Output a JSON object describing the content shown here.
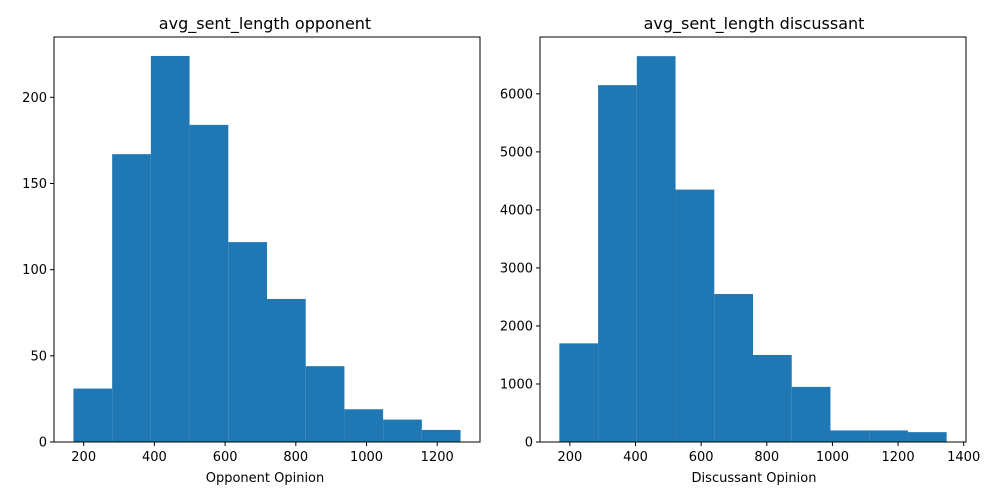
{
  "chart_data": [
    {
      "type": "bar",
      "title": "avg_sent_length opponent",
      "xlabel": "Opponent Opinion",
      "ylabel": "",
      "color": "#1f77b4",
      "bin_edges": [
        171,
        280.5,
        390,
        499.5,
        609,
        718.5,
        828,
        937.5,
        1047,
        1156.5,
        1266
      ],
      "values": [
        31,
        167,
        224,
        184,
        116,
        83,
        44,
        19,
        13,
        7
      ],
      "xlim": [
        116,
        1321
      ],
      "ylim": [
        0,
        235
      ],
      "xticks": [
        200,
        400,
        600,
        800,
        1000,
        1200
      ],
      "yticks": [
        0,
        50,
        100,
        150,
        200
      ]
    },
    {
      "type": "bar",
      "title": "avg_sent_length discussant",
      "xlabel": "Discussant Opinion",
      "ylabel": "",
      "color": "#1f77b4",
      "bin_edges": [
        168,
        286,
        404,
        522,
        640,
        758,
        876,
        994,
        1112,
        1230,
        1348
      ],
      "values": [
        1700,
        6150,
        6650,
        4350,
        2550,
        1500,
        950,
        200,
        200,
        170
      ],
      "xlim": [
        109,
        1407
      ],
      "ylim": [
        0,
        6980
      ],
      "xticks": [
        200,
        400,
        600,
        800,
        1000,
        1200,
        1400
      ],
      "yticks": [
        0,
        1000,
        2000,
        3000,
        4000,
        5000,
        6000
      ]
    }
  ]
}
